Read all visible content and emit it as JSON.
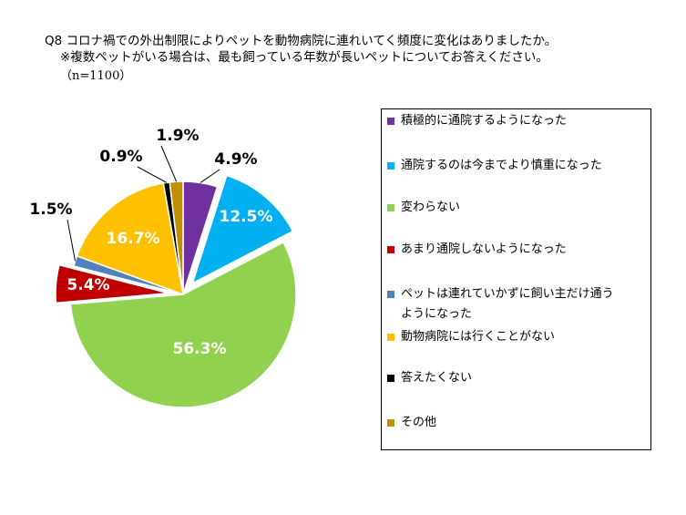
{
  "title": {
    "line1": "Q8 コロナ禍での外出制限によりペットを動物病院に連れいてく頻度に変化はありましたか。",
    "line2": "※複数ペットがいる場合は、最も飼っている年数が長いペットについてお答えください。",
    "line3": "（n=1100）"
  },
  "chart_data": {
    "type": "pie",
    "n": 1100,
    "slices": [
      {
        "label": "積極的に通院するようになった",
        "value": 4.9,
        "display": "4.9%",
        "color": "#7030A0",
        "exploded": false
      },
      {
        "label": "通院するのは今までより慎重になった",
        "value": 12.5,
        "display": "12.5%",
        "color": "#00B0F0",
        "exploded": true
      },
      {
        "label": "変わらない",
        "value": 56.3,
        "display": "56.3%",
        "color": "#92D050",
        "exploded": false
      },
      {
        "label": "あまり通院しないようになった",
        "value": 5.4,
        "display": "5.4%",
        "color": "#C00000",
        "exploded": true
      },
      {
        "label": "ペットは連れていかずに飼い主だけ通うようになった",
        "value": 1.5,
        "display": "1.5%",
        "color": "#4F81BD",
        "exploded": false
      },
      {
        "label": "動物病院には行くことがない",
        "value": 16.7,
        "display": "16.7%",
        "color": "#FFC000",
        "exploded": false
      },
      {
        "label": "答えたくない",
        "value": 0.9,
        "display": "0.9%",
        "color": "#000000",
        "exploded": false
      },
      {
        "label": "その他",
        "value": 1.9,
        "display": "1.9%",
        "color": "#C09000",
        "exploded": false
      }
    ]
  },
  "legend": {
    "items": [
      {
        "label": "積極的に通院するようになった",
        "color": "#7030A0"
      },
      {
        "label": "通院するのは今までより慎重になった",
        "color": "#00B0F0"
      },
      {
        "label": "変わらない",
        "color": "#92D050"
      },
      {
        "label": "あまり通院しないようになった",
        "color": "#C00000"
      },
      {
        "label": "ペットは連れていかずに飼い主だけ通う",
        "label_cont": "ようになった",
        "color": "#4F81BD"
      },
      {
        "label": "動物病院には行くことがない",
        "color": "#FFC000"
      },
      {
        "label": "答えたくない",
        "color": "#000000"
      },
      {
        "label": "その他",
        "color": "#C09000"
      }
    ]
  }
}
